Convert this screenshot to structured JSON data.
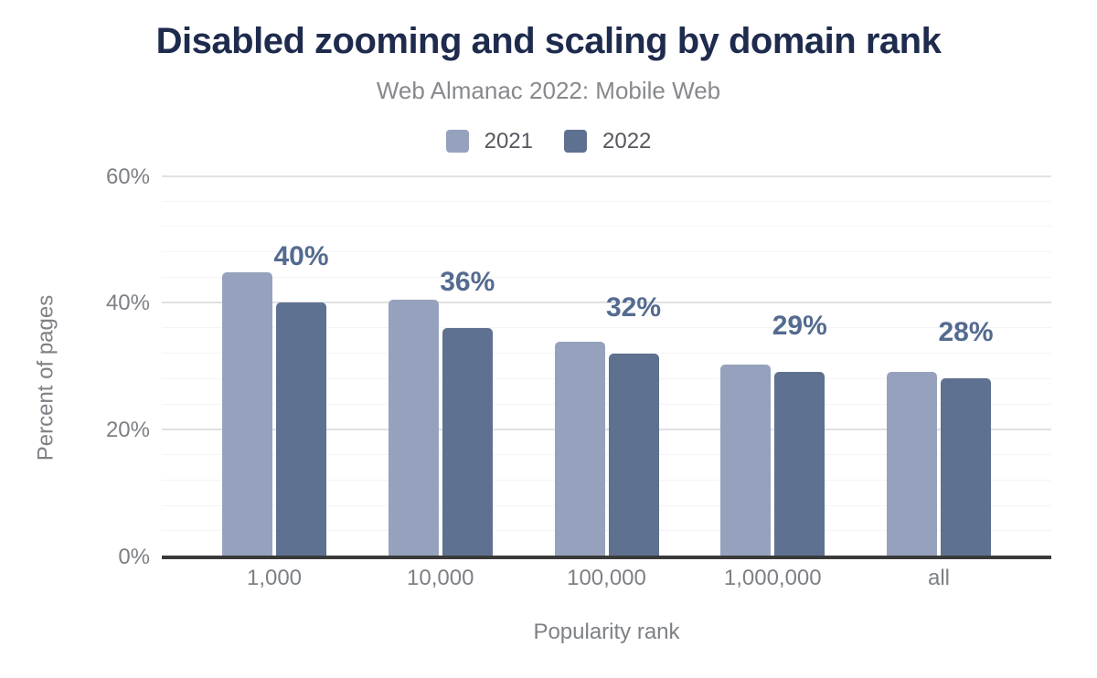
{
  "header": {
    "title": "Disabled zooming and scaling by domain rank",
    "subtitle": "Web Almanac 2022: Mobile Web"
  },
  "legend": {
    "items": [
      {
        "label": "2021",
        "color": "#96a2bd"
      },
      {
        "label": "2022",
        "color": "#5e7190"
      }
    ]
  },
  "chart_data": {
    "type": "bar",
    "title": "Disabled zooming and scaling by domain rank",
    "subtitle": "Web Almanac 2022: Mobile Web",
    "categories": [
      "1,000",
      "10,000",
      "100,000",
      "1,000,000",
      "all"
    ],
    "series": [
      {
        "name": "2021",
        "color": "#96a2bd",
        "values": [
          44.8,
          40.4,
          33.8,
          30.2,
          29.1
        ]
      },
      {
        "name": "2022",
        "color": "#5e7190",
        "values": [
          40,
          36,
          32,
          29,
          28
        ],
        "data_labels": [
          "40%",
          "36%",
          "32%",
          "29%",
          "28%"
        ]
      }
    ],
    "xlabel": "Popularity rank",
    "ylabel": "Percent of pages",
    "ylim": [
      0,
      60
    ],
    "yticks": [
      {
        "value": 0,
        "label": "0%"
      },
      {
        "value": 20,
        "label": "20%"
      },
      {
        "value": 40,
        "label": "40%"
      },
      {
        "value": 60,
        "label": "60%"
      }
    ],
    "major_grid_step_pct": 20,
    "minor_grid_step_pct": 4,
    "grid": true,
    "legend_position": "top",
    "data_label_color": "#546b90",
    "title_color": "#1e2b4d",
    "axis_text_color": "#7d8085",
    "axis_line_color": "#3a3a3a"
  }
}
